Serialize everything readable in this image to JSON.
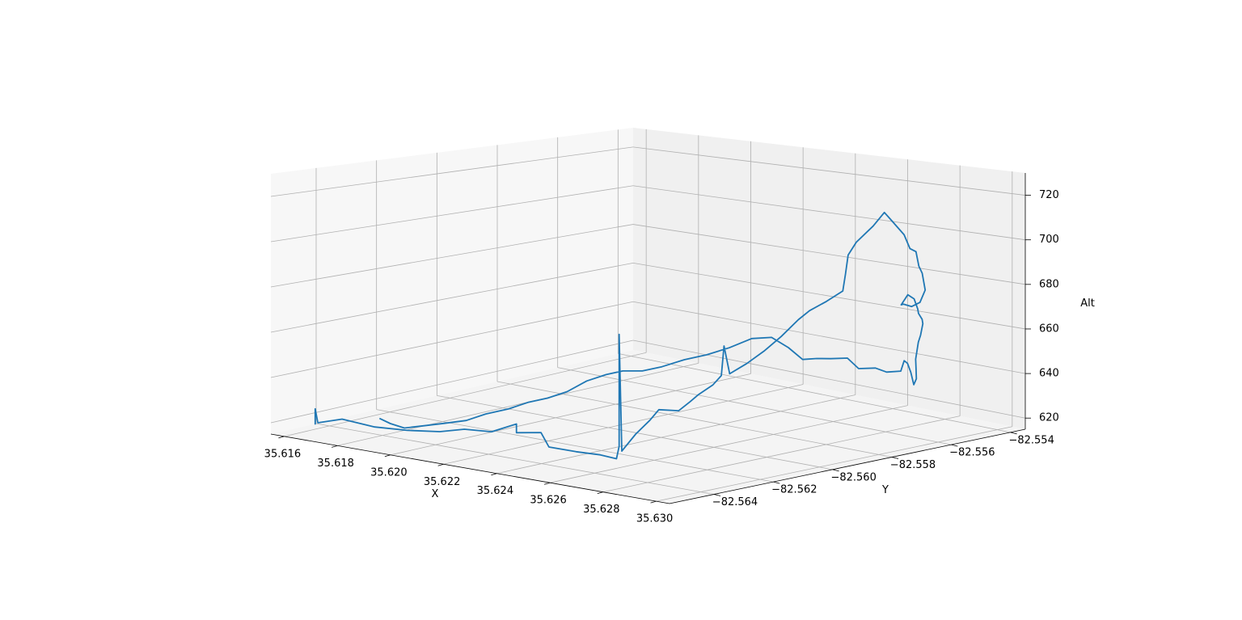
{
  "chart_data": {
    "type": "line3d",
    "title": "",
    "xlabel": "X",
    "ylabel": "Y",
    "zlabel": "Alt",
    "grid": true,
    "xlim": [
      35.6155,
      35.6305
    ],
    "ylim": [
      -82.5655,
      -82.5535
    ],
    "zlim": [
      615,
      730
    ],
    "x_ticks": [
      35.616,
      35.618,
      35.62,
      35.622,
      35.624,
      35.626,
      35.628,
      35.63
    ],
    "x_tick_labels": [
      "35.616",
      "35.618",
      "35.620",
      "35.622",
      "35.624",
      "35.626",
      "35.628",
      "35.630"
    ],
    "y_ticks": [
      -82.564,
      -82.562,
      -82.56,
      -82.558,
      -82.556,
      -82.554
    ],
    "y_tick_labels": [
      "−82.564",
      "−82.562",
      "−82.560",
      "−82.558",
      "−82.556",
      "−82.554"
    ],
    "z_ticks": [
      620,
      640,
      660,
      680,
      700,
      720
    ],
    "z_tick_labels": [
      "620",
      "640",
      "660",
      "680",
      "700",
      "720"
    ],
    "series": [
      {
        "color": "#1f77b4",
        "points": [
          [
            35.6166,
            -82.565,
            620
          ],
          [
            35.6166,
            -82.565,
            627
          ],
          [
            35.6167,
            -82.565,
            621
          ],
          [
            35.6175,
            -82.5649,
            624
          ],
          [
            35.6185,
            -82.5647,
            622
          ],
          [
            35.6195,
            -82.5645,
            622
          ],
          [
            35.6205,
            -82.5643,
            623
          ],
          [
            35.6212,
            -82.5641,
            625
          ],
          [
            35.622,
            -82.5639,
            625
          ],
          [
            35.6226,
            -82.5636,
            629
          ],
          [
            35.6226,
            -82.5636,
            625
          ],
          [
            35.6233,
            -82.5634,
            626
          ],
          [
            35.6236,
            -82.5634,
            620
          ],
          [
            35.6244,
            -82.5632,
            619
          ],
          [
            35.6252,
            -82.5631,
            619
          ],
          [
            35.6257,
            -82.563,
            618
          ],
          [
            35.6258,
            -82.563,
            624
          ],
          [
            35.6258,
            -82.563,
            676
          ],
          [
            35.6259,
            -82.563,
            622
          ],
          [
            35.6262,
            -82.5628,
            630
          ],
          [
            35.6264,
            -82.5625,
            636
          ],
          [
            35.6264,
            -82.5622,
            640
          ],
          [
            35.6267,
            -82.5618,
            639
          ],
          [
            35.6269,
            -82.5616,
            643
          ],
          [
            35.627,
            -82.5614,
            646
          ],
          [
            35.6272,
            -82.5611,
            650
          ],
          [
            35.6273,
            -82.5609,
            654
          ],
          [
            35.6274,
            -82.5609,
            668
          ],
          [
            35.6275,
            -82.5608,
            655
          ],
          [
            35.6277,
            -82.5604,
            659
          ],
          [
            35.6279,
            -82.56,
            664
          ],
          [
            35.6281,
            -82.5596,
            670
          ],
          [
            35.6283,
            -82.5592,
            677
          ],
          [
            35.6285,
            -82.559,
            681
          ],
          [
            35.6288,
            -82.5587,
            685
          ],
          [
            35.6292,
            -82.5585,
            690
          ],
          [
            35.6293,
            -82.5585,
            698
          ],
          [
            35.6294,
            -82.5585,
            707
          ],
          [
            35.6296,
            -82.5584,
            713
          ],
          [
            35.6299,
            -82.5581,
            720
          ],
          [
            35.6301,
            -82.5579,
            726
          ],
          [
            35.6302,
            -82.5578,
            723
          ],
          [
            35.6304,
            -82.5575,
            715
          ],
          [
            35.6304,
            -82.5573,
            708
          ],
          [
            35.6304,
            -82.5571,
            706
          ],
          [
            35.6304,
            -82.557,
            699
          ],
          [
            35.6303,
            -82.5568,
            695
          ],
          [
            35.6303,
            -82.5567,
            687
          ],
          [
            35.6301,
            -82.5567,
            681
          ],
          [
            35.6299,
            -82.5568,
            679
          ],
          [
            35.6297,
            -82.5569,
            680
          ],
          [
            35.6295,
            -82.5568,
            679
          ],
          [
            35.6293,
            -82.5564,
            682
          ],
          [
            35.6292,
            -82.5561,
            679
          ],
          [
            35.629,
            -82.5558,
            673
          ],
          [
            35.6288,
            -82.5556,
            670
          ],
          [
            35.6286,
            -82.5553,
            666
          ],
          [
            35.6284,
            -82.5551,
            663
          ],
          [
            35.6282,
            -82.555,
            657
          ],
          [
            35.628,
            -82.5549,
            653
          ],
          [
            35.6279,
            -82.5549,
            645
          ],
          [
            35.6278,
            -82.5548,
            640
          ],
          [
            35.6277,
            -82.5547,
            635
          ],
          [
            35.6276,
            -82.5547,
            632
          ],
          [
            35.6276,
            -82.5548,
            638
          ],
          [
            35.6277,
            -82.555,
            643
          ],
          [
            35.6278,
            -82.5552,
            645
          ],
          [
            35.6279,
            -82.5554,
            641
          ],
          [
            35.6277,
            -82.5557,
            641
          ],
          [
            35.6275,
            -82.5559,
            643
          ],
          [
            35.6272,
            -82.5562,
            643
          ],
          [
            35.627,
            -82.5564,
            648
          ],
          [
            35.6267,
            -82.5567,
            648
          ],
          [
            35.6264,
            -82.5569,
            648
          ],
          [
            35.6262,
            -82.5572,
            648
          ],
          [
            35.626,
            -82.5575,
            654
          ],
          [
            35.6257,
            -82.5578,
            659
          ],
          [
            35.6254,
            -82.5582,
            659
          ],
          [
            35.625,
            -82.5586,
            655
          ],
          [
            35.6246,
            -82.559,
            652
          ],
          [
            35.6242,
            -82.5594,
            650
          ],
          [
            35.6238,
            -82.5598,
            647
          ],
          [
            35.6234,
            -82.5601,
            645
          ],
          [
            35.623,
            -82.5604,
            645
          ],
          [
            35.6226,
            -82.5606,
            643
          ],
          [
            35.6222,
            -82.5609,
            640
          ],
          [
            35.6218,
            -82.5612,
            635
          ],
          [
            35.6214,
            -82.5615,
            632
          ],
          [
            35.621,
            -82.5618,
            630
          ],
          [
            35.6206,
            -82.5621,
            627
          ],
          [
            35.6202,
            -82.5625,
            625
          ],
          [
            35.6198,
            -82.5628,
            622
          ],
          [
            35.6194,
            -82.5632,
            621
          ],
          [
            35.619,
            -82.5635,
            620
          ],
          [
            35.6186,
            -82.5638,
            619
          ],
          [
            35.6183,
            -82.564,
            621
          ],
          [
            35.618,
            -82.5641,
            623
          ]
        ]
      }
    ]
  }
}
